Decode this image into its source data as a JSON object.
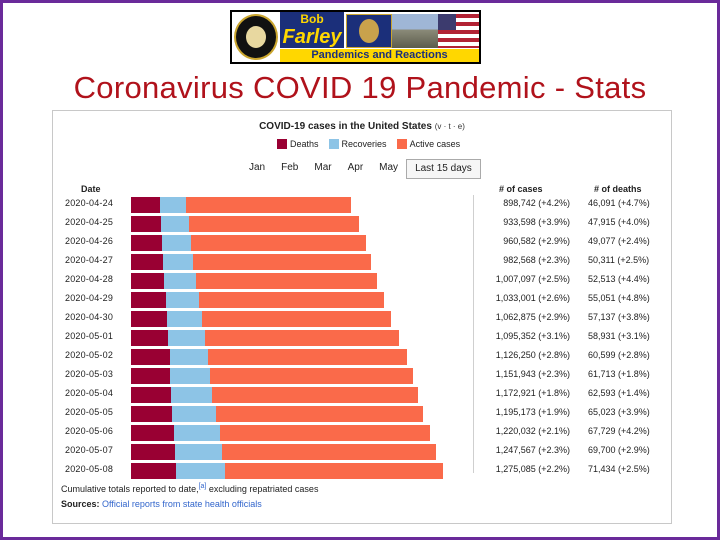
{
  "banner": {
    "name_top": "Bob",
    "name": "Farley",
    "subtitle": "Pandemics and Reactions"
  },
  "slide_title": "Coronavirus COVID 19 Pandemic - Stats",
  "chart_data": {
    "type": "bar",
    "title": "COVID-19 cases in the United States",
    "vte": "(v · t · e)",
    "legend": [
      {
        "name": "Deaths",
        "color": "#990033"
      },
      {
        "name": "Recoveries",
        "color": "#8dc4e6"
      },
      {
        "name": "Active cases",
        "color": "#fa6a4a"
      }
    ],
    "tabs": [
      {
        "label": "Jan",
        "active": false
      },
      {
        "label": "Feb",
        "active": false
      },
      {
        "label": "Mar",
        "active": false
      },
      {
        "label": "Apr",
        "active": false
      },
      {
        "label": "May",
        "active": false
      },
      {
        "label": "Last 15 days",
        "active": true
      }
    ],
    "columns": {
      "date": "Date",
      "cases": "# of cases",
      "deaths": "# of deaths"
    },
    "xmax": 1275085,
    "rows": [
      {
        "date": "2020-04-24",
        "cases": 898742,
        "cases_label": "898,742 (+4.2%)",
        "deaths": 46091,
        "deaths_label": "46,091 (+4.7%)",
        "recoveries": 106000
      },
      {
        "date": "2020-04-25",
        "cases": 933598,
        "cases_label": "933,598 (+3.9%)",
        "deaths": 47915,
        "deaths_label": "47,915 (+4.0%)",
        "recoveries": 113000
      },
      {
        "date": "2020-04-26",
        "cases": 960582,
        "cases_label": "960,582 (+2.9%)",
        "deaths": 49077,
        "deaths_label": "49,077 (+2.4%)",
        "recoveries": 118000
      },
      {
        "date": "2020-04-27",
        "cases": 982568,
        "cases_label": "982,568 (+2.3%)",
        "deaths": 50311,
        "deaths_label": "50,311 (+2.5%)",
        "recoveries": 124000
      },
      {
        "date": "2020-04-28",
        "cases": 1007097,
        "cases_label": "1,007,097 (+2.5%)",
        "deaths": 52513,
        "deaths_label": "52,513 (+4.4%)",
        "recoveries": 130000
      },
      {
        "date": "2020-04-29",
        "cases": 1033001,
        "cases_label": "1,033,001 (+2.6%)",
        "deaths": 55051,
        "deaths_label": "55,051 (+4.8%)",
        "recoveries": 136000
      },
      {
        "date": "2020-04-30",
        "cases": 1062875,
        "cases_label": "1,062,875 (+2.9%)",
        "deaths": 57137,
        "deaths_label": "57,137 (+3.8%)",
        "recoveries": 143000
      },
      {
        "date": "2020-05-01",
        "cases": 1095352,
        "cases_label": "1,095,352 (+3.1%)",
        "deaths": 58931,
        "deaths_label": "58,931 (+3.1%)",
        "recoveries": 150000
      },
      {
        "date": "2020-05-02",
        "cases": 1126250,
        "cases_label": "1,126,250 (+2.8%)",
        "deaths": 60599,
        "deaths_label": "60,599 (+2.8%)",
        "recoveries": 158000
      },
      {
        "date": "2020-05-03",
        "cases": 1151943,
        "cases_label": "1,151,943 (+2.3%)",
        "deaths": 61713,
        "deaths_label": "61,713 (+1.8%)",
        "recoveries": 164000
      },
      {
        "date": "2020-05-04",
        "cases": 1172921,
        "cases_label": "1,172,921 (+1.8%)",
        "deaths": 62593,
        "deaths_label": "62,593 (+1.4%)",
        "recoveries": 170000
      },
      {
        "date": "2020-05-05",
        "cases": 1195173,
        "cases_label": "1,195,173 (+1.9%)",
        "deaths": 65023,
        "deaths_label": "65,023 (+3.9%)",
        "recoveries": 178000
      },
      {
        "date": "2020-05-06",
        "cases": 1220032,
        "cases_label": "1,220,032 (+2.1%)",
        "deaths": 67729,
        "deaths_label": "67,729 (+4.2%)",
        "recoveries": 186000
      },
      {
        "date": "2020-05-07",
        "cases": 1247567,
        "cases_label": "1,247,567 (+2.3%)",
        "deaths": 69700,
        "deaths_label": "69,700 (+2.9%)",
        "recoveries": 192000
      },
      {
        "date": "2020-05-08",
        "cases": 1275085,
        "cases_label": "1,275,085 (+2.2%)",
        "deaths": 71434,
        "deaths_label": "71,434 (+2.5%)",
        "recoveries": 198000
      }
    ],
    "footnote": "Cumulative totals reported to date,",
    "footnote_ref": "[a]",
    "footnote_tail": " excluding repatriated cases",
    "sources_label": "Sources:",
    "sources_link": "Official reports from state health officials"
  }
}
